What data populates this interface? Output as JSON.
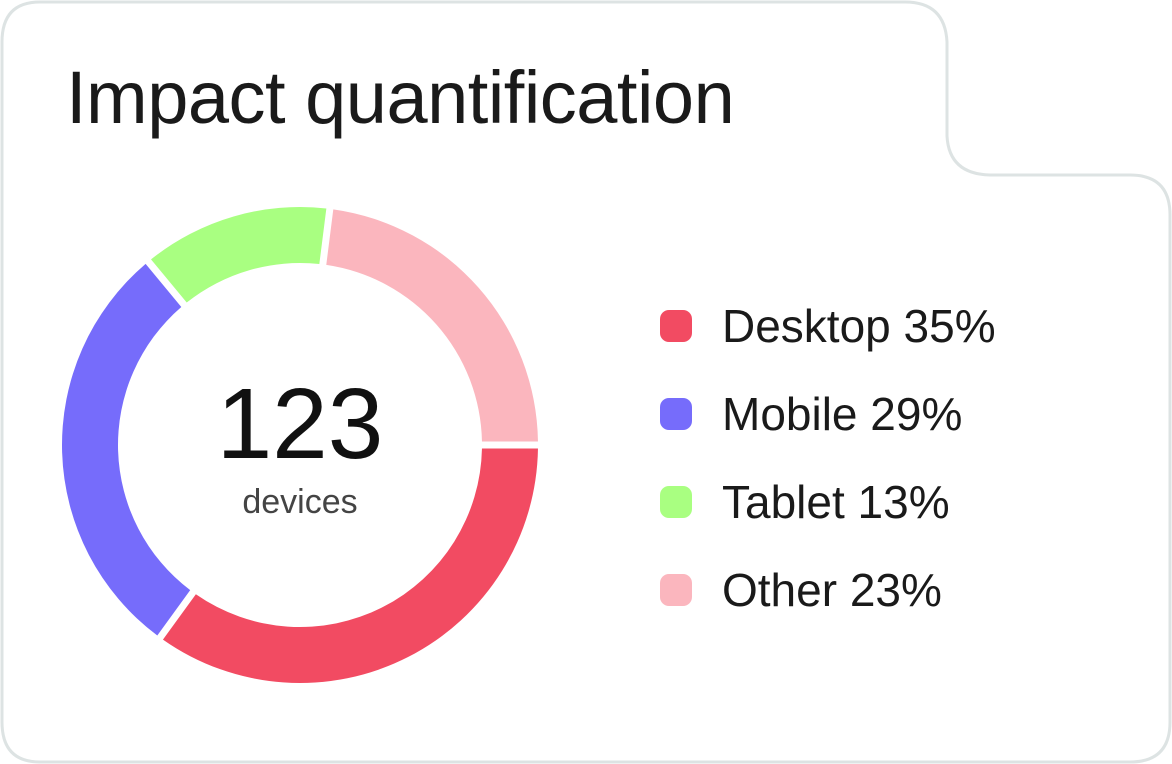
{
  "card": {
    "title": "Impact quantification"
  },
  "center": {
    "total": "123",
    "unit": "devices"
  },
  "legend": {
    "items": [
      {
        "label": "Desktop 35%",
        "color": "#f24b62"
      },
      {
        "label": "Mobile 29%",
        "color": "#766cfb"
      },
      {
        "label": "Tablet 13%",
        "color": "#a9ff81"
      },
      {
        "label": "Other 23%",
        "color": "#fbb6be"
      }
    ]
  },
  "chart_data": {
    "type": "pie",
    "title": "Impact quantification",
    "total": 123,
    "total_label": "devices",
    "categories": [
      "Desktop",
      "Mobile",
      "Tablet",
      "Other"
    ],
    "values": [
      35,
      29,
      13,
      23
    ],
    "unit": "%",
    "colors": [
      "#f24b62",
      "#766cfb",
      "#a9ff81",
      "#fbb6be"
    ],
    "legend_position": "right"
  }
}
